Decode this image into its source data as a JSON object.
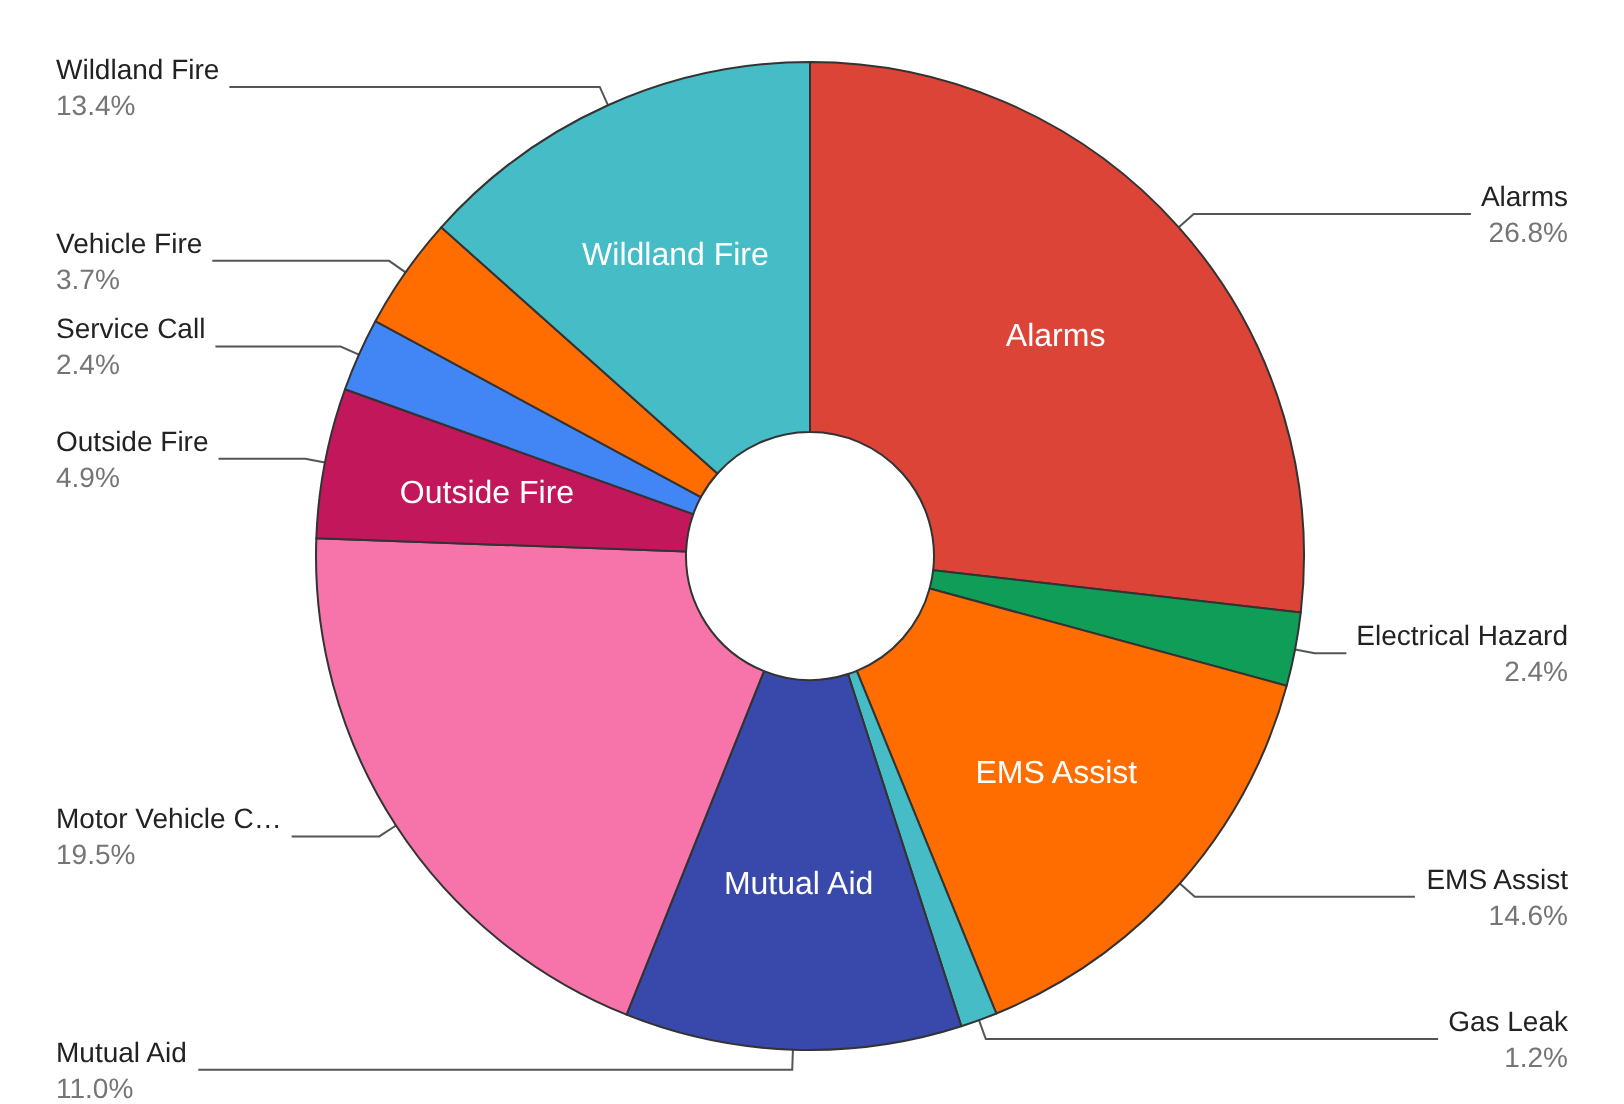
{
  "chart_data": {
    "type": "donut",
    "categories": [
      "Alarms",
      "Electrical Hazard",
      "EMS Assist",
      "Gas Leak",
      "Mutual Aid",
      "Motor Vehicle C…",
      "Outside Fire",
      "Service Call",
      "Vehicle Fire",
      "Wildland Fire"
    ],
    "values": [
      26.8,
      2.4,
      14.6,
      1.2,
      11.0,
      19.5,
      4.9,
      2.4,
      3.7,
      13.4
    ],
    "colors": [
      "#db4437",
      "#0f9d58",
      "#ff6d00",
      "#46bdc6",
      "#3949ab",
      "#f774aa",
      "#c2185b",
      "#4285f4",
      "#ff6d00",
      "#46bdc6"
    ],
    "value_labels": [
      "26.8%",
      "2.4%",
      "14.6%",
      "1.2%",
      "11.0%",
      "19.5%",
      "4.9%",
      "2.4%",
      "3.7%",
      "13.4%"
    ],
    "legend": false
  }
}
